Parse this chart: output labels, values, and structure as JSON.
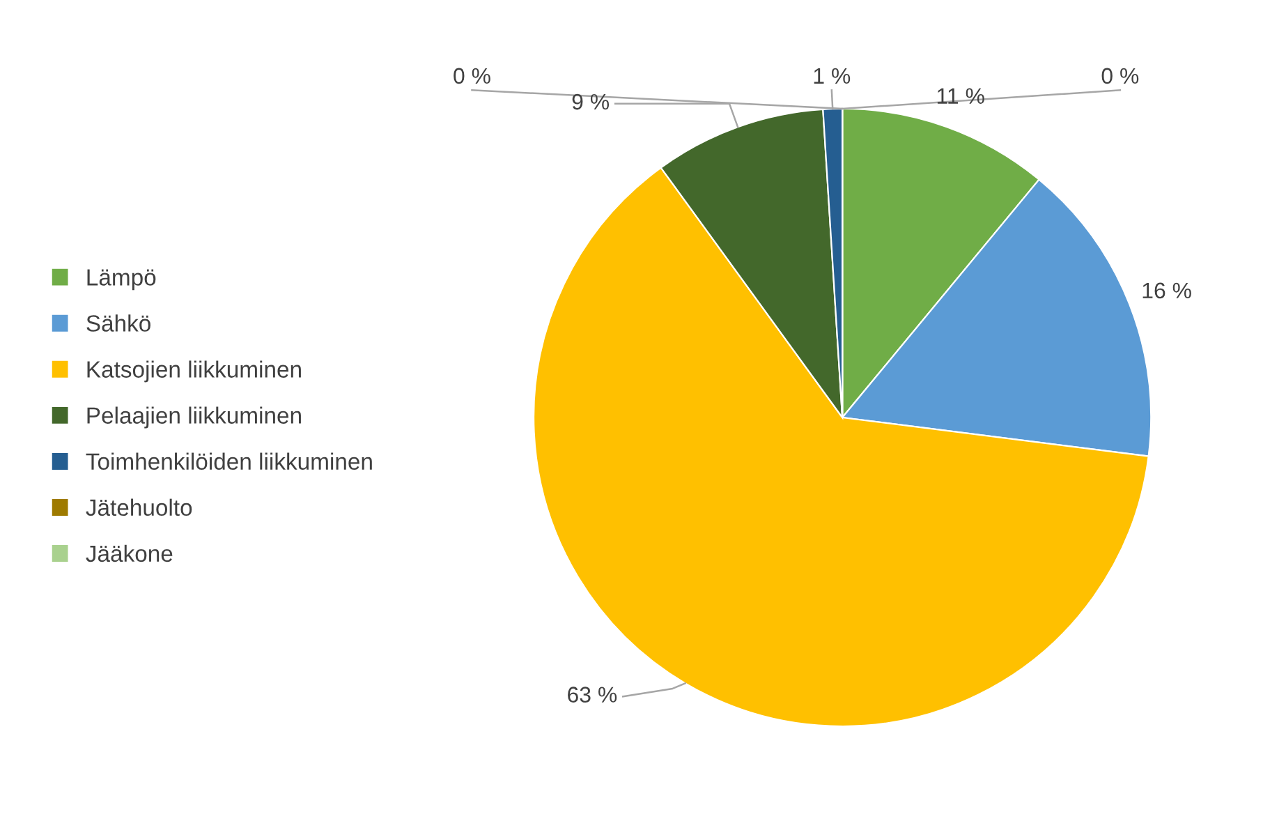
{
  "chart_data": {
    "type": "pie",
    "categories": [
      "Lämpö",
      "Sähkö",
      "Katsojien liikkuminen",
      "Pelaajien liikkuminen",
      "Toimhenkilöiden liikkuminen",
      "Jätehuolto",
      "Jääkone"
    ],
    "values": [
      11,
      16,
      63,
      9,
      1,
      0,
      0
    ],
    "value_labels": [
      "11 %",
      "16 %",
      "63 %",
      "9 %",
      "1 %",
      "0 %",
      "0 %"
    ],
    "colors": [
      "#70ad47",
      "#5b9bd5",
      "#ffc000",
      "#43682b",
      "#255e91",
      "#9e7a00",
      "#a9d18e"
    ],
    "legend": "left"
  }
}
